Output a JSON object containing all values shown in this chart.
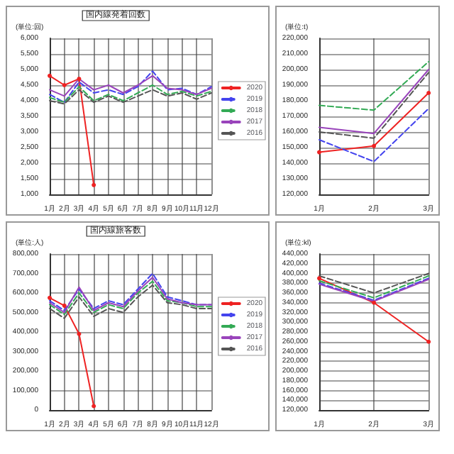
{
  "chart_data": [
    {
      "type": "line",
      "title": "国内線発着回数",
      "ylabel": "(単位:回)",
      "categories": [
        "1月",
        "2月",
        "3月",
        "4月",
        "5月",
        "6月",
        "7月",
        "8月",
        "9月",
        "10月",
        "11月",
        "12月"
      ],
      "ylim": [
        1000,
        6000
      ],
      "yticks": [
        {
          "value": 1000,
          "label": "1,000"
        },
        {
          "value": 1500,
          "label": "1,500"
        },
        {
          "value": 2000,
          "label": "2,000"
        },
        {
          "value": 2500,
          "label": "2,500"
        },
        {
          "value": 3000,
          "label": "3,000"
        },
        {
          "value": 3500,
          "label": "3,500"
        },
        {
          "value": 4000,
          "label": "4,000"
        },
        {
          "value": 4500,
          "label": "4,500"
        },
        {
          "value": 5000,
          "label": "5,000"
        },
        {
          "value": 5500,
          "label": "5,500"
        },
        {
          "value": 6000,
          "label": "6,000"
        }
      ],
      "grid": true,
      "legend": "right",
      "series": [
        {
          "name": "2020",
          "color": "#ee2222",
          "marker": "circle",
          "line_style": "solid",
          "values": [
            4800,
            4500,
            4700,
            1300,
            null,
            null,
            null,
            null,
            null,
            null,
            null,
            null
          ]
        },
        {
          "name": "2019",
          "color": "#4444ee",
          "marker": "none",
          "line_style": "dashed",
          "values": [
            4200,
            3950,
            4600,
            4250,
            4350,
            4200,
            4450,
            4950,
            4350,
            4400,
            4200,
            4450
          ]
        },
        {
          "name": "2018",
          "color": "#33aa55",
          "marker": "none",
          "line_style": "dashed",
          "values": [
            4100,
            3950,
            4450,
            4000,
            4200,
            4000,
            4250,
            4500,
            4200,
            4300,
            4150,
            4300
          ]
        },
        {
          "name": "2017",
          "color": "#9944bb",
          "marker": "none",
          "line_style": "solid",
          "values": [
            4350,
            4150,
            4700,
            4350,
            4500,
            4250,
            4500,
            4800,
            4400,
            4350,
            4200,
            4400
          ]
        },
        {
          "name": "2016",
          "color": "#555555",
          "marker": "none",
          "line_style": "dashed",
          "values": [
            4000,
            3900,
            4350,
            3950,
            4150,
            3950,
            4150,
            4350,
            4150,
            4250,
            4050,
            4250
          ]
        }
      ]
    },
    {
      "type": "line",
      "title": "国内線旅客数",
      "ylabel": "(単位:人)",
      "categories": [
        "1月",
        "2月",
        "3月",
        "4月",
        "5月",
        "6月",
        "7月",
        "8月",
        "9月",
        "10月",
        "11月",
        "12月"
      ],
      "ylim": [
        0,
        800000
      ],
      "yticks": [
        0,
        {
          "value": 100000,
          "label": "100,000"
        },
        {
          "value": 200000,
          "label": "200,000"
        },
        {
          "value": 300000,
          "label": "300,000"
        },
        {
          "value": 400000,
          "label": "400,000"
        },
        {
          "value": 500000,
          "label": "500,000"
        },
        {
          "value": 600000,
          "label": "600,000"
        },
        {
          "value": 700000,
          "label": "700,000"
        },
        {
          "value": 800000,
          "label": "800,000"
        }
      ],
      "grid": true,
      "legend": "right",
      "series": [
        {
          "name": "2020",
          "color": "#ee2222",
          "marker": "circle",
          "line_style": "solid",
          "values": [
            575000,
            535000,
            390000,
            20000,
            null,
            null,
            null,
            null,
            null,
            null,
            null,
            null
          ]
        },
        {
          "name": "2019",
          "color": "#4444ee",
          "marker": "none",
          "line_style": "dashed",
          "values": [
            560000,
            510000,
            620000,
            520000,
            560000,
            540000,
            620000,
            700000,
            580000,
            560000,
            540000,
            540000
          ]
        },
        {
          "name": "2018",
          "color": "#33aa55",
          "marker": "none",
          "line_style": "dashed",
          "values": [
            540000,
            490000,
            600000,
            500000,
            540000,
            520000,
            600000,
            660000,
            560000,
            550000,
            530000,
            530000
          ]
        },
        {
          "name": "2017",
          "color": "#9944bb",
          "marker": "none",
          "line_style": "solid",
          "values": [
            550000,
            500000,
            630000,
            510000,
            550000,
            530000,
            610000,
            680000,
            570000,
            550000,
            540000,
            540000
          ]
        },
        {
          "name": "2016",
          "color": "#555555",
          "marker": "none",
          "line_style": "dashed",
          "values": [
            520000,
            470000,
            580000,
            480000,
            520000,
            500000,
            580000,
            640000,
            550000,
            540000,
            520000,
            520000
          ]
        }
      ]
    },
    {
      "type": "line",
      "ylabel": "(単位:t)",
      "categories": [
        "1月",
        "2月",
        "3月"
      ],
      "ylim": [
        120000,
        220000
      ],
      "yticks": [
        {
          "value": 120000,
          "label": "120,000"
        },
        {
          "value": 130000,
          "label": "130,000"
        },
        {
          "value": 140000,
          "label": "140,000"
        },
        {
          "value": 150000,
          "label": "150,000"
        },
        {
          "value": 160000,
          "label": "160,000"
        },
        {
          "value": 170000,
          "label": "170,000"
        },
        {
          "value": 180000,
          "label": "180,000"
        },
        {
          "value": 190000,
          "label": "190,000"
        },
        {
          "value": 200000,
          "label": "200,000"
        },
        {
          "value": 210000,
          "label": "210,000"
        },
        {
          "value": 220000,
          "label": "220,000"
        }
      ],
      "grid": true,
      "series": [
        {
          "color": "#ee2222",
          "marker": "circle",
          "line_style": "solid",
          "values": [
            147000,
            151000,
            185000
          ]
        },
        {
          "color": "#4444ee",
          "marker": "none",
          "line_style": "dashed",
          "values": [
            155000,
            141000,
            175000
          ]
        },
        {
          "color": "#33aa55",
          "marker": "none",
          "line_style": "dashed",
          "values": [
            177000,
            174000,
            205000
          ]
        },
        {
          "color": "#9944bb",
          "marker": "none",
          "line_style": "solid",
          "values": [
            163000,
            159000,
            200000
          ]
        },
        {
          "color": "#555555",
          "marker": "none",
          "line_style": "dashed",
          "values": [
            160000,
            156000,
            198000
          ]
        }
      ]
    },
    {
      "type": "line",
      "ylabel": "(単位:kl)",
      "categories": [
        "1月",
        "2月",
        "3月"
      ],
      "ylim": [
        120000,
        440000
      ],
      "yticks": [
        {
          "value": 120000,
          "label": "120,000"
        },
        {
          "value": 140000,
          "label": "140,000"
        },
        {
          "value": 160000,
          "label": "160,000"
        },
        {
          "value": 180000,
          "label": "180,000"
        },
        {
          "value": 200000,
          "label": "200,000"
        },
        {
          "value": 220000,
          "label": "220,000"
        },
        {
          "value": 240000,
          "label": "240,000"
        },
        {
          "value": 260000,
          "label": "260,000"
        },
        {
          "value": 280000,
          "label": "280,000"
        },
        {
          "value": 300000,
          "label": "300,000"
        },
        {
          "value": 320000,
          "label": "320,000"
        },
        {
          "value": 340000,
          "label": "340,000"
        },
        {
          "value": 360000,
          "label": "360,000"
        },
        {
          "value": 380000,
          "label": "380,000"
        },
        {
          "value": 400000,
          "label": "400,000"
        },
        {
          "value": 420000,
          "label": "420,000"
        },
        {
          "value": 440000,
          "label": "440,000"
        }
      ],
      "grid": true,
      "series": [
        {
          "color": "#ee2222",
          "marker": "circle",
          "line_style": "solid",
          "values": [
            390000,
            340000,
            260000
          ]
        },
        {
          "color": "#4444ee",
          "marker": "none",
          "line_style": "dashed",
          "values": [
            380000,
            345000,
            390000
          ]
        },
        {
          "color": "#33aa55",
          "marker": "none",
          "line_style": "dashed",
          "values": [
            385000,
            350000,
            395000
          ]
        },
        {
          "color": "#9944bb",
          "marker": "none",
          "line_style": "solid",
          "values": [
            378000,
            343000,
            388000
          ]
        },
        {
          "color": "#555555",
          "marker": "none",
          "line_style": "dashed",
          "values": [
            395000,
            360000,
            400000
          ]
        }
      ]
    }
  ]
}
